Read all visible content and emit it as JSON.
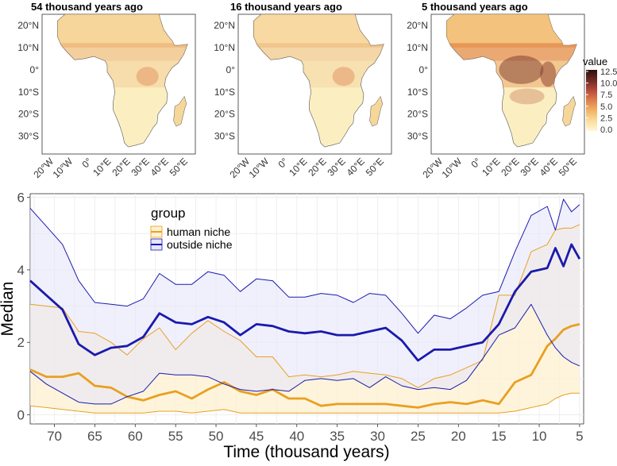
{
  "maps": [
    {
      "title": "54 thousand years ago",
      "intensity": 0.45
    },
    {
      "title": "16 thousand years ago",
      "intensity": 0.35
    },
    {
      "title": "5 thousand years ago",
      "intensity": 1.0
    }
  ],
  "map_axes": {
    "lat_ticks": [
      "20°N",
      "10°N",
      "0°",
      "10°S",
      "20°S",
      "30°S"
    ],
    "lon_ticks": [
      "20°W",
      "10°W",
      "0°",
      "10°E",
      "20°E",
      "30°E",
      "40°E",
      "50°E"
    ]
  },
  "colorbar": {
    "title": "value",
    "ticks": [
      "12.5",
      "10.0",
      "7.5",
      "5.0",
      "2.5",
      "0.0"
    ],
    "colors": [
      "#fff7d6",
      "#f9dd9a",
      "#f1b366",
      "#de7f4a",
      "#b64a3b",
      "#6e2a24",
      "#2b100c"
    ]
  },
  "chart_data": {
    "type": "line",
    "xlabel": "Time (thousand years)",
    "ylabel": "Median",
    "xlim": [
      73,
      4.5
    ],
    "ylim": [
      -0.25,
      6.1
    ],
    "xticks": [
      70,
      65,
      60,
      55,
      50,
      45,
      40,
      35,
      30,
      25,
      20,
      15,
      10,
      5
    ],
    "yticks": [
      0,
      2,
      4,
      6
    ],
    "legend": {
      "title": "group",
      "position": "top-left"
    },
    "x": [
      73,
      71,
      69,
      67,
      65,
      63,
      61,
      59,
      57,
      55,
      53,
      51,
      49,
      47,
      45,
      43,
      41,
      39,
      37,
      35,
      33,
      31,
      29,
      27,
      25,
      23,
      21,
      19,
      17,
      15,
      13,
      11,
      9,
      8,
      7,
      6,
      5
    ],
    "series": [
      {
        "name": "human niche",
        "color": "#e8a020",
        "fill": "#fdf0d0",
        "median": [
          1.25,
          1.05,
          1.05,
          1.15,
          0.8,
          0.75,
          0.5,
          0.4,
          0.55,
          0.65,
          0.45,
          0.7,
          0.9,
          0.65,
          0.55,
          0.7,
          0.45,
          0.45,
          0.25,
          0.3,
          0.3,
          0.3,
          0.3,
          0.25,
          0.2,
          0.3,
          0.35,
          0.3,
          0.4,
          0.3,
          0.9,
          1.1,
          1.9,
          2.1,
          2.35,
          2.45,
          2.5
        ],
        "upper": [
          3.05,
          3.0,
          2.95,
          2.3,
          2.25,
          2.0,
          1.65,
          2.1,
          2.4,
          1.8,
          2.25,
          2.6,
          2.3,
          2.05,
          1.6,
          1.6,
          1.05,
          1.1,
          1.05,
          1.1,
          1.2,
          1.15,
          1.1,
          1.0,
          0.75,
          1.0,
          1.1,
          1.3,
          1.5,
          3.3,
          3.3,
          4.5,
          4.7,
          5.1,
          5.15,
          5.15,
          5.25
        ],
        "lower": [
          0.25,
          0.2,
          0.15,
          0.1,
          0.05,
          0.05,
          0.05,
          0.05,
          0.1,
          0.1,
          0.05,
          0.1,
          0.15,
          0.05,
          0.05,
          0.05,
          0.05,
          0.05,
          0.05,
          0.05,
          0.05,
          0.05,
          0.05,
          0.05,
          0.05,
          0.05,
          0.05,
          0.05,
          0.05,
          0.05,
          0.1,
          0.2,
          0.3,
          0.45,
          0.55,
          0.6,
          0.6
        ]
      },
      {
        "name": "outside niche",
        "color": "#1a1aad",
        "fill": "#e6e6fa",
        "median": [
          3.7,
          3.3,
          2.9,
          1.95,
          1.65,
          1.85,
          1.9,
          2.15,
          2.8,
          2.55,
          2.5,
          2.7,
          2.55,
          2.2,
          2.5,
          2.45,
          2.3,
          2.25,
          2.3,
          2.2,
          2.2,
          2.3,
          2.4,
          2.05,
          1.5,
          1.8,
          1.8,
          1.9,
          2.0,
          2.5,
          3.4,
          3.95,
          4.05,
          4.6,
          4.1,
          4.7,
          4.3
        ],
        "upper": [
          5.7,
          5.2,
          4.7,
          3.7,
          3.1,
          3.05,
          3.0,
          3.2,
          3.9,
          3.6,
          3.6,
          3.95,
          3.85,
          3.4,
          3.75,
          3.7,
          3.25,
          3.25,
          3.35,
          3.3,
          3.1,
          3.35,
          3.3,
          2.8,
          2.25,
          2.75,
          2.65,
          2.95,
          3.3,
          3.4,
          4.5,
          5.5,
          5.75,
          5.1,
          5.95,
          5.6,
          5.8
        ],
        "lower": [
          1.2,
          0.85,
          0.6,
          0.35,
          0.3,
          0.3,
          0.5,
          0.65,
          1.15,
          1.1,
          1.1,
          1.05,
          0.85,
          0.7,
          0.65,
          0.7,
          0.65,
          0.95,
          1.0,
          0.95,
          1.0,
          0.75,
          1.05,
          0.8,
          0.7,
          0.75,
          0.7,
          0.95,
          1.55,
          2.2,
          2.4,
          3.05,
          2.2,
          1.85,
          1.6,
          1.45,
          1.35
        ]
      }
    ]
  }
}
